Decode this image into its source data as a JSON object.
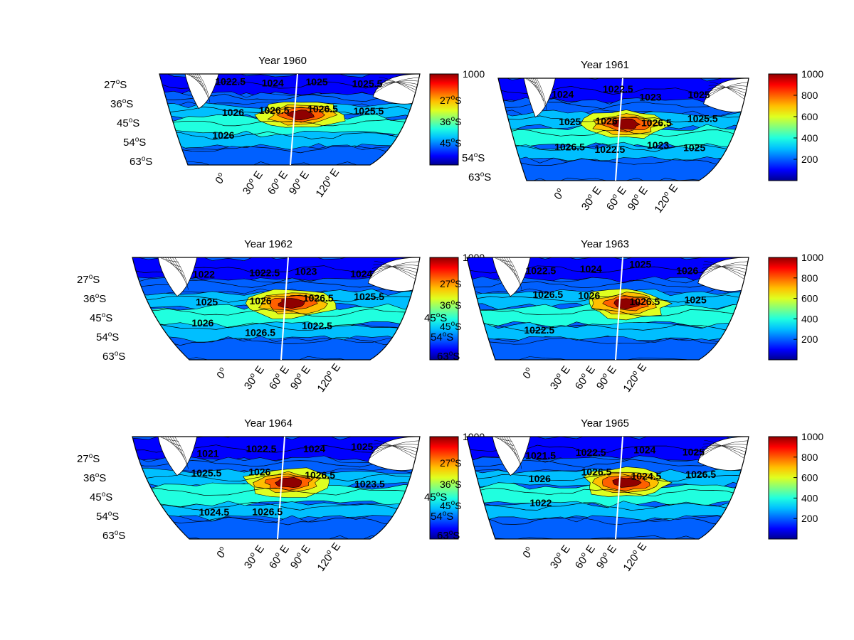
{
  "colors": {
    "jet": [
      "#00008f",
      "#0000ff",
      "#0060ff",
      "#00bfff",
      "#20ffdf",
      "#80ff80",
      "#dfff20",
      "#ffbf00",
      "#ff6000",
      "#ff0000",
      "#8f0000"
    ],
    "land": "#ffffff",
    "background": "#ffffff"
  },
  "panels": [
    {
      "title": "Year 1960",
      "lat_labels": [
        "27",
        "36",
        "45",
        "54",
        "63"
      ],
      "lat_suffix": "S",
      "lon_labels": [
        "0",
        "30",
        "60",
        "90",
        "120"
      ],
      "lon_suffix": "E",
      "colorbar": {
        "ticks": [
          "1000"
        ],
        "overlap_labels": [
          "27",
          "36",
          "45"
        ],
        "max": 1000,
        "min": 0
      },
      "contour_labels": [
        "1022.5",
        "1024",
        "1025",
        "1025.5",
        "1026",
        "1026.5",
        "1026.5",
        "1025.5",
        "1026"
      ]
    },
    {
      "title": "Year 1961",
      "lat_labels": [
        "54",
        "63"
      ],
      "lat_suffix": "S",
      "lon_labels": [
        "0",
        "30",
        "60",
        "90",
        "120"
      ],
      "lon_suffix": "E",
      "colorbar": {
        "ticks": [
          "1000",
          "800",
          "600",
          "400",
          "200"
        ],
        "overlap_labels": [],
        "max": 1000,
        "min": 0
      },
      "contour_labels": [
        "1024",
        "1022.5",
        "1023",
        "1025",
        "1025",
        "1026",
        "1026.5",
        "1025.5",
        "1026.5",
        "1022.5",
        "1023",
        "1025"
      ]
    },
    {
      "title": "Year 1962",
      "lat_labels": [
        "27",
        "36",
        "45",
        "54",
        "63"
      ],
      "lat_suffix": "S",
      "lon_labels": [
        "0",
        "30",
        "60",
        "90",
        "120"
      ],
      "lon_suffix": "E",
      "colorbar": {
        "ticks": [
          "1000"
        ],
        "overlap_labels": [
          "27",
          "36",
          "45"
        ],
        "max": 1000,
        "min": 0
      },
      "contour_labels": [
        "1022",
        "1022.5",
        "1023",
        "1024",
        "1025",
        "1026",
        "1026.5",
        "1025.5",
        "1026",
        "1026.5",
        "1022.5"
      ]
    },
    {
      "title": "Year 1963",
      "lat_labels": [
        "45",
        "54",
        "63"
      ],
      "lat_suffix": "S",
      "lon_labels": [
        "0",
        "30",
        "60",
        "90",
        "120"
      ],
      "lon_suffix": "E",
      "colorbar": {
        "ticks": [
          "1000",
          "800",
          "600",
          "400",
          "200"
        ],
        "overlap_labels": [],
        "max": 1000,
        "min": 0
      },
      "contour_labels": [
        "1022.5",
        "1024",
        "1025",
        "1026",
        "1026.5",
        "1026",
        "1026.5",
        "1025",
        "1022.5"
      ]
    },
    {
      "title": "Year 1964",
      "lat_labels": [
        "27",
        "36",
        "45",
        "54",
        "63"
      ],
      "lat_suffix": "S",
      "lon_labels": [
        "0",
        "30",
        "60",
        "90",
        "120"
      ],
      "lon_suffix": "E",
      "colorbar": {
        "ticks": [
          "1000"
        ],
        "overlap_labels": [
          "27",
          "36",
          "45"
        ],
        "max": 1000,
        "min": 0
      },
      "contour_labels": [
        "1021",
        "1022.5",
        "1024",
        "1025",
        "1025.5",
        "1026",
        "1026.5",
        "1023.5",
        "1024.5",
        "1026.5"
      ]
    },
    {
      "title": "Year 1965",
      "lat_labels": [
        "45",
        "54",
        "63"
      ],
      "lat_suffix": "S",
      "lon_labels": [
        "0",
        "30",
        "60",
        "90",
        "120"
      ],
      "lon_suffix": "E",
      "colorbar": {
        "ticks": [
          "1000",
          "800",
          "600",
          "400",
          "200"
        ],
        "overlap_labels": [],
        "max": 1000,
        "min": 0
      },
      "contour_labels": [
        "1021.5",
        "1022.5",
        "1024",
        "1025",
        "1026",
        "1026.5",
        "1024.5",
        "1026.5",
        "1022"
      ]
    }
  ]
}
